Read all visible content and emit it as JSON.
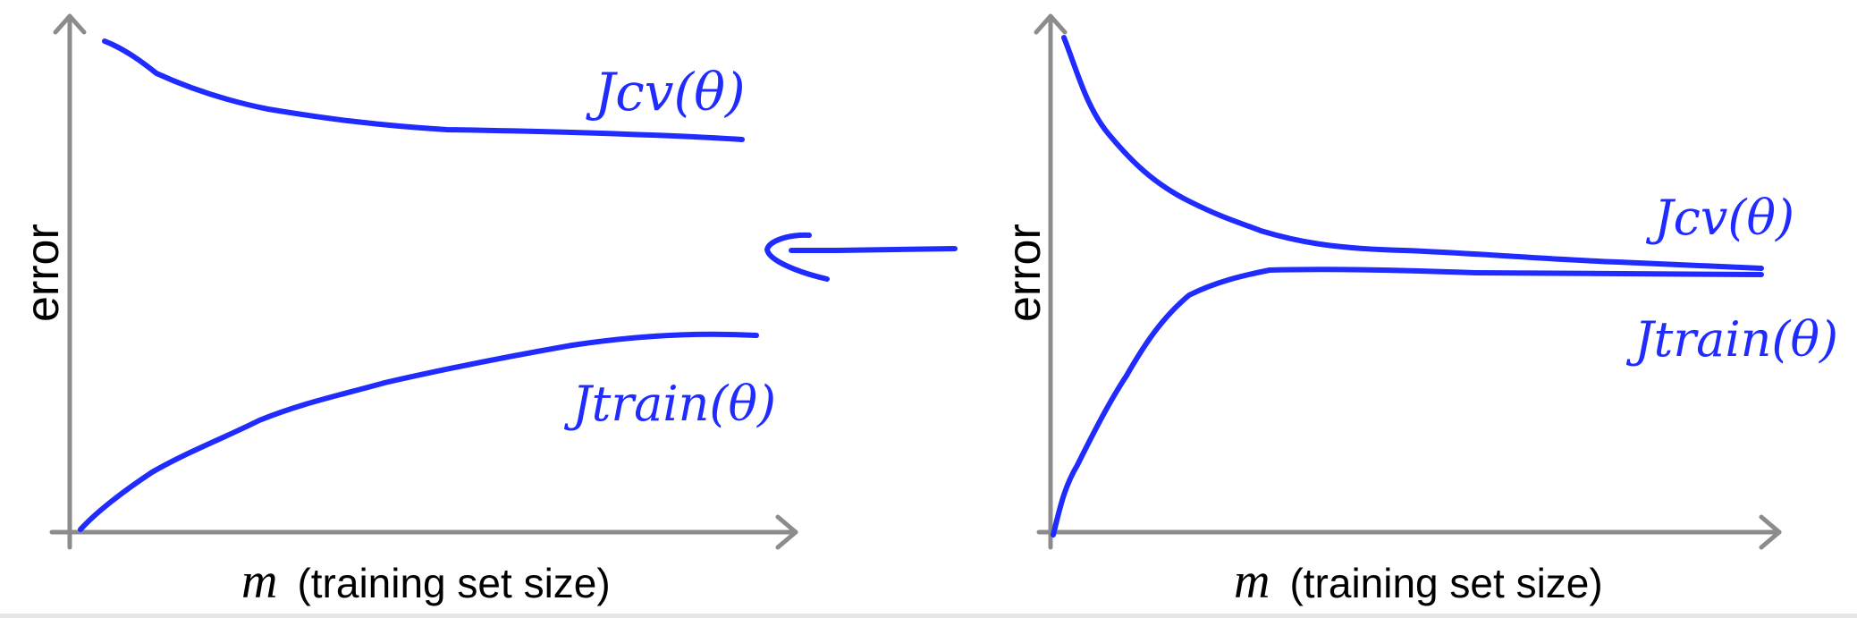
{
  "left_panel": {
    "y_axis_label": "error",
    "x_axis_var": "m",
    "x_axis_label": "(training set size)",
    "curves": [
      {
        "label": "Jcv(θ)",
        "shape": "decreasing, high plateau"
      },
      {
        "label": "Jtrain(θ)",
        "shape": "increasing, large gap"
      }
    ]
  },
  "arrow": {
    "direction": "left"
  },
  "right_panel": {
    "y_axis_label": "error",
    "x_axis_var": "m",
    "x_axis_label": "(training set size)",
    "curves": [
      {
        "label": "Jcv(θ)",
        "shape": "decreasing, converges"
      },
      {
        "label": "Jtrain(θ)",
        "shape": "increasing, converges"
      }
    ]
  },
  "colors": {
    "axis": "#8c8c8c",
    "curve": "#1f2bff"
  }
}
